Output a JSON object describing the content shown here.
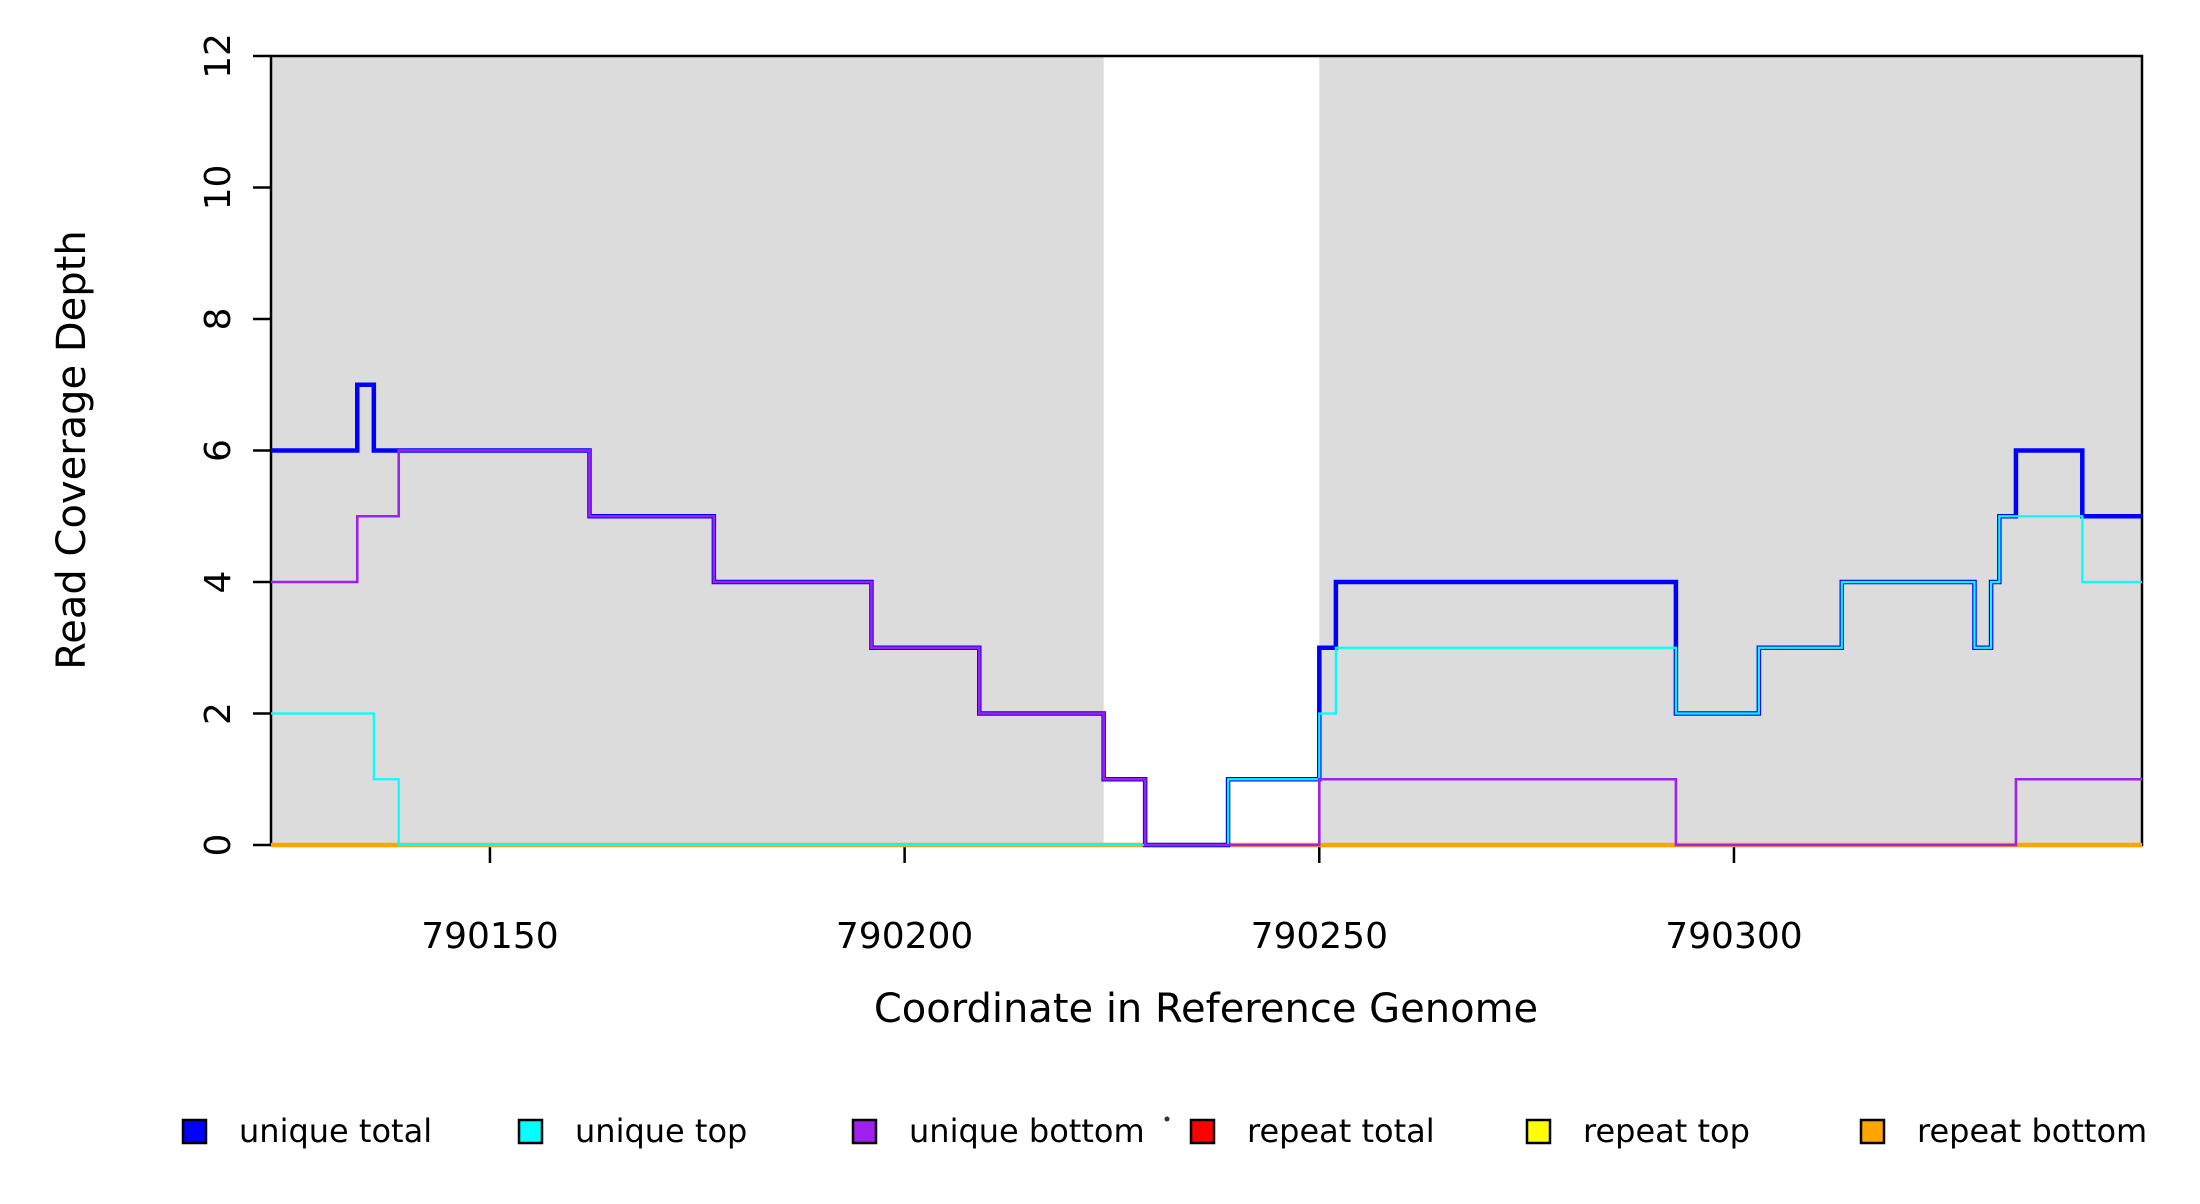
{
  "chart_data": {
    "type": "line",
    "subtype": "step-coverage",
    "title": "",
    "xlabel": "Coordinate in Reference Genome",
    "ylabel": "Read Coverage Depth",
    "xlim": [
      790123.6,
      790349.2
    ],
    "ylim": [
      0,
      12
    ],
    "x_ticks": [
      790150,
      790200,
      790250,
      790300
    ],
    "y_ticks": [
      0,
      2,
      4,
      6,
      8,
      10,
      12
    ],
    "grid": false,
    "legend_position": "bottom",
    "plot_bg": "#FFFFFF",
    "band_color": "#DCDCDC",
    "background_bands": [
      {
        "x0": 790123.6,
        "x1": 790224.0
      },
      {
        "x0": 790250.0,
        "x1": 790349.2
      }
    ],
    "series": [
      {
        "name": "repeat total",
        "color": "#FF0000",
        "width": 2.0,
        "steps": [
          [
            790123.6,
            0
          ]
        ]
      },
      {
        "name": "repeat top",
        "color": "#FFFF00",
        "width": 2.0,
        "steps": [
          [
            790123.6,
            0
          ]
        ]
      },
      {
        "name": "repeat bottom",
        "color": "#FFA500",
        "width": 4.5,
        "steps": [
          [
            790123.6,
            0
          ]
        ]
      },
      {
        "name": "unique total",
        "color": "#0000FF",
        "width": 4.5,
        "steps": [
          [
            790123.6,
            6
          ],
          [
            790134,
            7
          ],
          [
            790136,
            6
          ],
          [
            790162,
            5
          ],
          [
            790177,
            4
          ],
          [
            790196,
            3
          ],
          [
            790209,
            2
          ],
          [
            790224,
            1
          ],
          [
            790229,
            0
          ],
          [
            790239,
            1
          ],
          [
            790250,
            3
          ],
          [
            790252,
            4
          ],
          [
            790293,
            2
          ],
          [
            790303,
            3
          ],
          [
            790313,
            4
          ],
          [
            790329,
            3
          ],
          [
            790331,
            4
          ],
          [
            790332,
            5
          ],
          [
            790334,
            6
          ],
          [
            790342,
            5
          ]
        ]
      },
      {
        "name": "unique top",
        "color": "#00FFFF",
        "width": 2.2,
        "steps": [
          [
            790123.6,
            2
          ],
          [
            790136,
            1
          ],
          [
            790139,
            0
          ],
          [
            790239,
            1
          ],
          [
            790250,
            2
          ],
          [
            790252,
            3
          ],
          [
            790293,
            2
          ],
          [
            790303,
            3
          ],
          [
            790313,
            4
          ],
          [
            790329,
            3
          ],
          [
            790331,
            4
          ],
          [
            790332,
            5
          ],
          [
            790342,
            4
          ]
        ]
      },
      {
        "name": "unique bottom",
        "color": "#A020F0",
        "width": 2.6,
        "steps": [
          [
            790123.6,
            4
          ],
          [
            790134,
            5
          ],
          [
            790139,
            6
          ],
          [
            790162,
            5
          ],
          [
            790177,
            4
          ],
          [
            790196,
            3
          ],
          [
            790209,
            2
          ],
          [
            790224,
            1
          ],
          [
            790229,
            0
          ],
          [
            790250,
            1
          ],
          [
            790293,
            0
          ],
          [
            790334,
            1
          ]
        ]
      }
    ],
    "legend": [
      {
        "label": "unique total",
        "color": "#0000FF"
      },
      {
        "label": "unique top",
        "color": "#00FFFF"
      },
      {
        "label": "unique bottom",
        "color": "#A020F0"
      },
      {
        "label": "repeat total",
        "color": "#FF0000"
      },
      {
        "label": "repeat top",
        "color": "#FFFF00"
      },
      {
        "label": "repeat bottom",
        "color": "#FFA500"
      }
    ],
    "legend_artifact_dot": "·"
  }
}
